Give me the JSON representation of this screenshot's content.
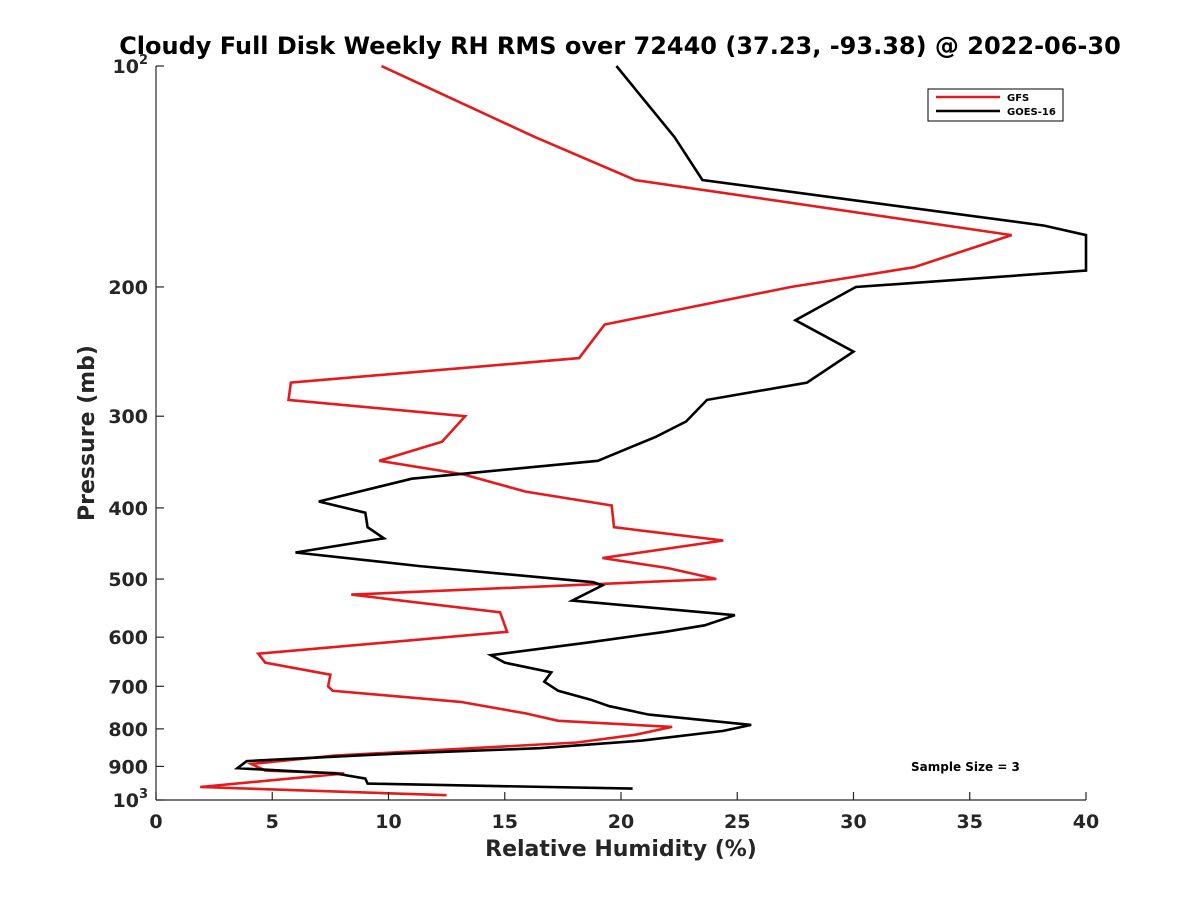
{
  "chart_data": {
    "type": "line",
    "title": "Cloudy Full Disk Weekly RH RMS over 72440 (37.23, -93.38) @ 2022-06-30",
    "xlabel": "Relative Humidity (%)",
    "ylabel": "Pressure (mb)",
    "xlim": [
      0,
      40
    ],
    "ylim": [
      100,
      1000
    ],
    "y_scale": "log",
    "y_reversed": true,
    "x_ticks": [
      0,
      5,
      10,
      15,
      20,
      25,
      30,
      35,
      40
    ],
    "y_ticks": [
      {
        "value": 100,
        "base": "10",
        "exp": "2"
      },
      {
        "value": 200,
        "label": "200"
      },
      {
        "value": 300,
        "label": "300"
      },
      {
        "value": 400,
        "label": "400"
      },
      {
        "value": 500,
        "label": "500"
      },
      {
        "value": 600,
        "label": "600"
      },
      {
        "value": 700,
        "label": "700"
      },
      {
        "value": 800,
        "label": "800"
      },
      {
        "value": 900,
        "label": "900"
      },
      {
        "value": 1000,
        "base": "10",
        "exp": "3"
      }
    ],
    "legend_position": "top-right",
    "annotation": "Sample Size = 3",
    "series": [
      {
        "name": "GFS",
        "color": "#e41a1c",
        "points": [
          [
            9.7,
            100
          ],
          [
            16.3,
            125
          ],
          [
            20.6,
            143
          ],
          [
            36.8,
            170
          ],
          [
            32.6,
            188
          ],
          [
            27.3,
            200
          ],
          [
            19.3,
            225
          ],
          [
            18.2,
            250
          ],
          [
            5.8,
            270
          ],
          [
            5.7,
            285
          ],
          [
            13.3,
            300
          ],
          [
            12.3,
            325
          ],
          [
            9.6,
            345
          ],
          [
            13.2,
            360
          ],
          [
            15.9,
            380
          ],
          [
            19.6,
            397
          ],
          [
            19.7,
            425
          ],
          [
            24.4,
            443
          ],
          [
            19.2,
            468
          ],
          [
            22.0,
            483
          ],
          [
            24.1,
            500
          ],
          [
            8.4,
            525
          ],
          [
            14.8,
            555
          ],
          [
            15.1,
            590
          ],
          [
            4.4,
            632
          ],
          [
            4.7,
            650
          ],
          [
            7.5,
            675
          ],
          [
            7.4,
            700
          ],
          [
            7.6,
            710
          ],
          [
            13.1,
            735
          ],
          [
            15.9,
            762
          ],
          [
            17.3,
            780
          ],
          [
            22.2,
            795
          ],
          [
            20.6,
            815
          ],
          [
            18.1,
            835
          ],
          [
            13.6,
            850
          ],
          [
            7.7,
            870
          ],
          [
            4.1,
            893
          ],
          [
            4.7,
            912
          ],
          [
            8.1,
            920
          ],
          [
            1.9,
            960
          ],
          [
            12.5,
            985
          ]
        ]
      },
      {
        "name": "GOES-16",
        "color": "#000000",
        "points": [
          [
            19.8,
            100
          ],
          [
            22.3,
            125
          ],
          [
            23.5,
            143
          ],
          [
            38.2,
            165
          ],
          [
            40,
            170
          ],
          [
            40,
            190
          ],
          [
            30.1,
            200
          ],
          [
            27.5,
            222
          ],
          [
            30.0,
            245
          ],
          [
            28.0,
            270
          ],
          [
            23.7,
            285
          ],
          [
            22.8,
            305
          ],
          [
            21.5,
            320
          ],
          [
            19.0,
            345
          ],
          [
            11.0,
            365
          ],
          [
            7.0,
            392
          ],
          [
            9.0,
            406
          ],
          [
            9.1,
            425
          ],
          [
            9.8,
            440
          ],
          [
            6.0,
            460
          ],
          [
            11.3,
            480
          ],
          [
            18.8,
            505
          ],
          [
            19.2,
            510
          ],
          [
            17.9,
            535
          ],
          [
            24.9,
            560
          ],
          [
            23.6,
            578
          ],
          [
            21.9,
            590
          ],
          [
            18.6,
            610
          ],
          [
            14.4,
            635
          ],
          [
            15.0,
            650
          ],
          [
            17.0,
            670
          ],
          [
            16.7,
            690
          ],
          [
            17.3,
            710
          ],
          [
            18.7,
            730
          ],
          [
            19.5,
            745
          ],
          [
            21.2,
            765
          ],
          [
            25.6,
            790
          ],
          [
            24.4,
            805
          ],
          [
            20.9,
            830
          ],
          [
            16.5,
            850
          ],
          [
            10.2,
            865
          ],
          [
            3.9,
            885
          ],
          [
            3.5,
            905
          ],
          [
            7.7,
            920
          ],
          [
            9.0,
            935
          ],
          [
            9.1,
            950
          ],
          [
            20.5,
            965
          ]
        ]
      }
    ]
  }
}
